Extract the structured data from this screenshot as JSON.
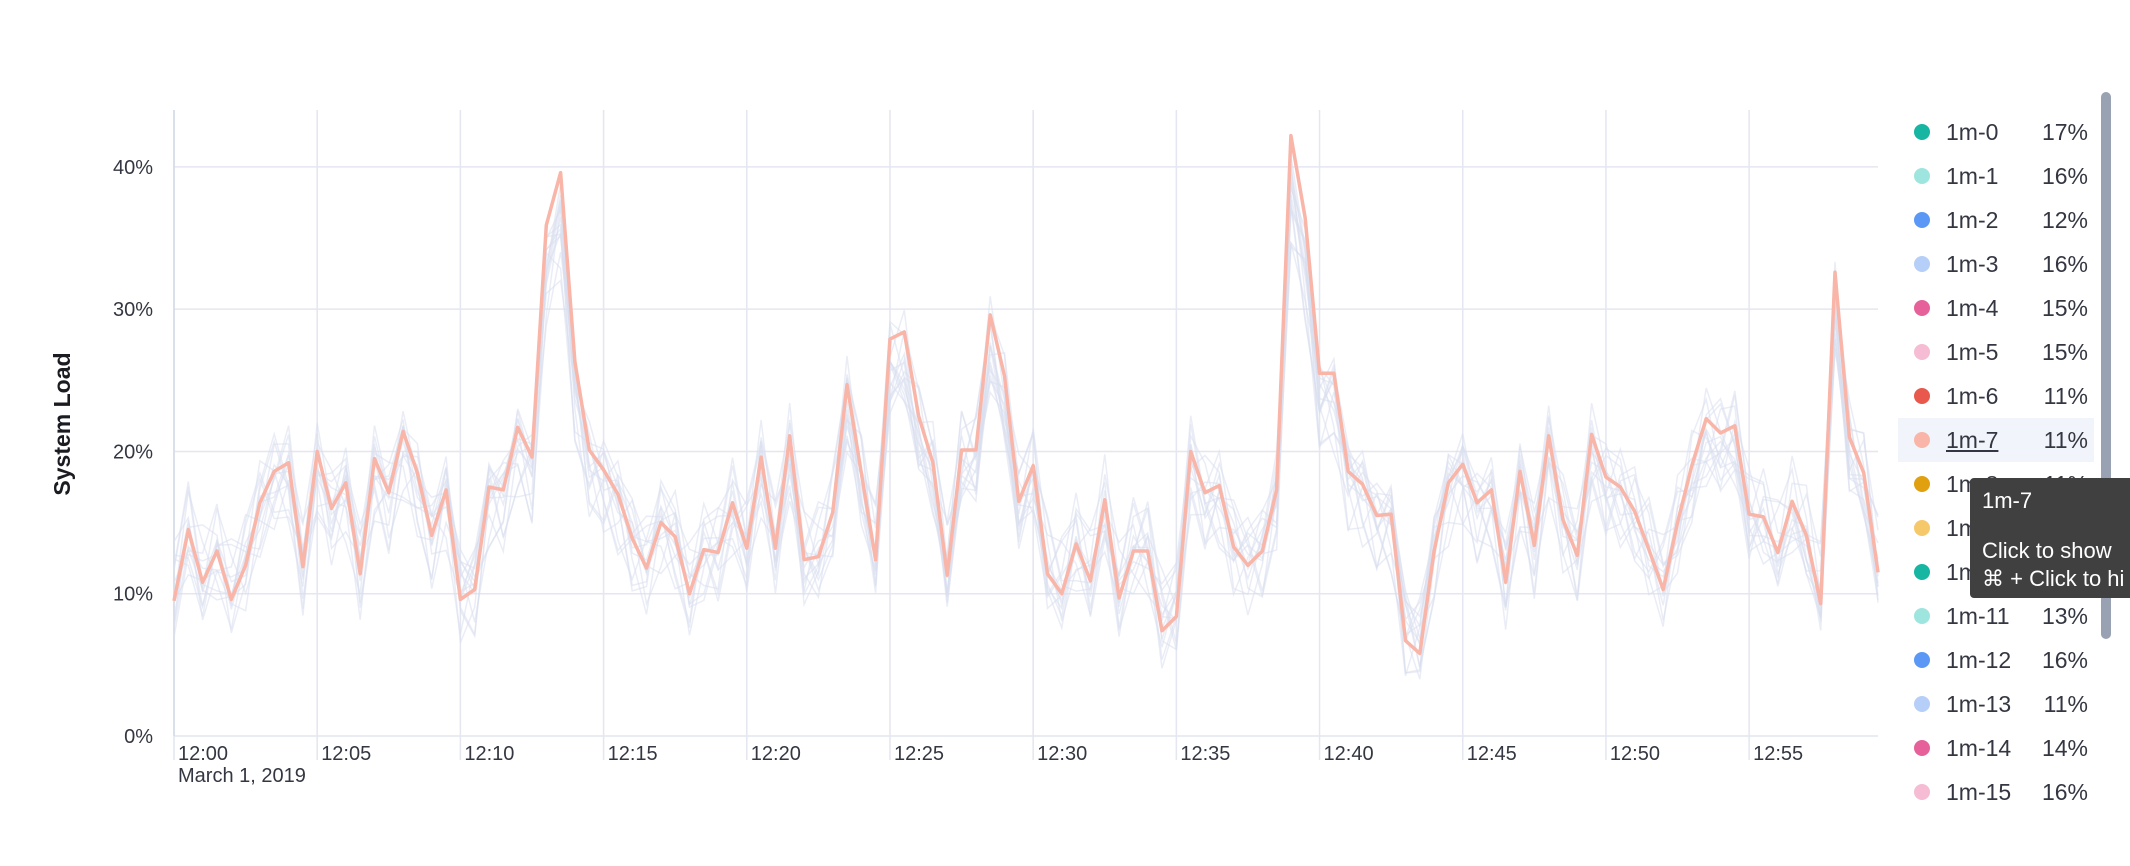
{
  "chart_data": {
    "type": "line",
    "ylabel": "System Load",
    "y_axis": {
      "ticks": [
        "0%",
        "10%",
        "20%",
        "30%",
        "40%"
      ],
      "ylim": [
        0,
        44
      ]
    },
    "x_axis": {
      "ticks": [
        "12:00",
        "12:05",
        "12:10",
        "12:15",
        "12:20",
        "12:25",
        "12:30",
        "12:35",
        "12:40",
        "12:45",
        "12:50",
        "12:55"
      ],
      "subtitle": "March 1, 2019",
      "xlim_minutes": [
        0,
        59.5
      ]
    },
    "grid": true,
    "legend_position": "right",
    "highlighted_series": "1m-7",
    "highlight_color": "#f8b5a8",
    "background_series_color": "#d9deee",
    "highlighted_values": [
      9.5,
      14.5,
      10.8,
      13,
      9.6,
      12,
      16.4,
      18.6,
      19.2,
      11.9,
      20,
      16,
      17.8,
      11.4,
      19.5,
      17.1,
      21.4,
      18.5,
      14.1,
      17.3,
      9.6,
      10.3,
      17.5,
      17.3,
      21.7,
      19.6,
      35.9,
      39.6,
      26.3,
      20.1,
      18.7,
      17,
      13.9,
      11.8,
      15,
      14,
      10,
      13.1,
      12.9,
      16.4,
      13.2,
      19.6,
      13.2,
      21.1,
      12.4,
      12.6,
      15.7,
      24.7,
      18.5,
      12.4,
      27.9,
      28.4,
      22.5,
      19.2,
      11.3,
      20.1,
      20.1,
      29.6,
      25.3,
      16.5,
      19,
      11.4,
      10,
      13.5,
      10.9,
      16.6,
      9.7,
      13,
      13,
      7.4,
      8.4,
      20,
      17.1,
      17.6,
      13.3,
      12,
      13,
      17.3,
      42.2,
      36.4,
      25.5,
      25.5,
      18.6,
      17.7,
      15.5,
      15.6,
      6.7,
      5.8,
      13,
      17.8,
      19.1,
      16.4,
      17.3,
      10.8,
      18.6,
      13.4,
      21.1,
      15.2,
      12.7,
      21.2,
      18.2,
      17.5,
      15.8,
      13.1,
      10.3,
      15,
      19,
      22.3,
      21.3,
      21.8,
      15.6,
      15.4,
      12.9,
      16.5,
      14.1,
      9.3,
      32.6,
      21,
      18.5,
      11.5
    ],
    "series": [
      {
        "name": "1m-0",
        "value": "17%",
        "color": "#16b6a3"
      },
      {
        "name": "1m-1",
        "value": "16%",
        "color": "#9fe5df"
      },
      {
        "name": "1m-2",
        "value": "12%",
        "color": "#5b98f5"
      },
      {
        "name": "1m-3",
        "value": "16%",
        "color": "#b6cff8"
      },
      {
        "name": "1m-4",
        "value": "15%",
        "color": "#e6619a"
      },
      {
        "name": "1m-5",
        "value": "15%",
        "color": "#f5bcd3"
      },
      {
        "name": "1m-6",
        "value": "11%",
        "color": "#e9584c"
      },
      {
        "name": "1m-7",
        "value": "11%",
        "color": "#f8b5a8"
      },
      {
        "name": "1m-8",
        "value": "11%",
        "color": "#e0a010"
      },
      {
        "name": "1m-9",
        "value": "",
        "color": "#f5c96a"
      },
      {
        "name": "1m-10",
        "value": "",
        "color": "#16b6a3"
      },
      {
        "name": "1m-11",
        "value": "13%",
        "color": "#9fe5df"
      },
      {
        "name": "1m-12",
        "value": "16%",
        "color": "#5b98f5"
      },
      {
        "name": "1m-13",
        "value": "11%",
        "color": "#b6cff8"
      },
      {
        "name": "1m-14",
        "value": "14%",
        "color": "#e6619a"
      },
      {
        "name": "1m-15",
        "value": "16%",
        "color": "#f5bcd3"
      }
    ]
  },
  "tooltip": {
    "title": "1m-7",
    "line1": "Click to show",
    "line2": "⌘ + Click to hi"
  }
}
